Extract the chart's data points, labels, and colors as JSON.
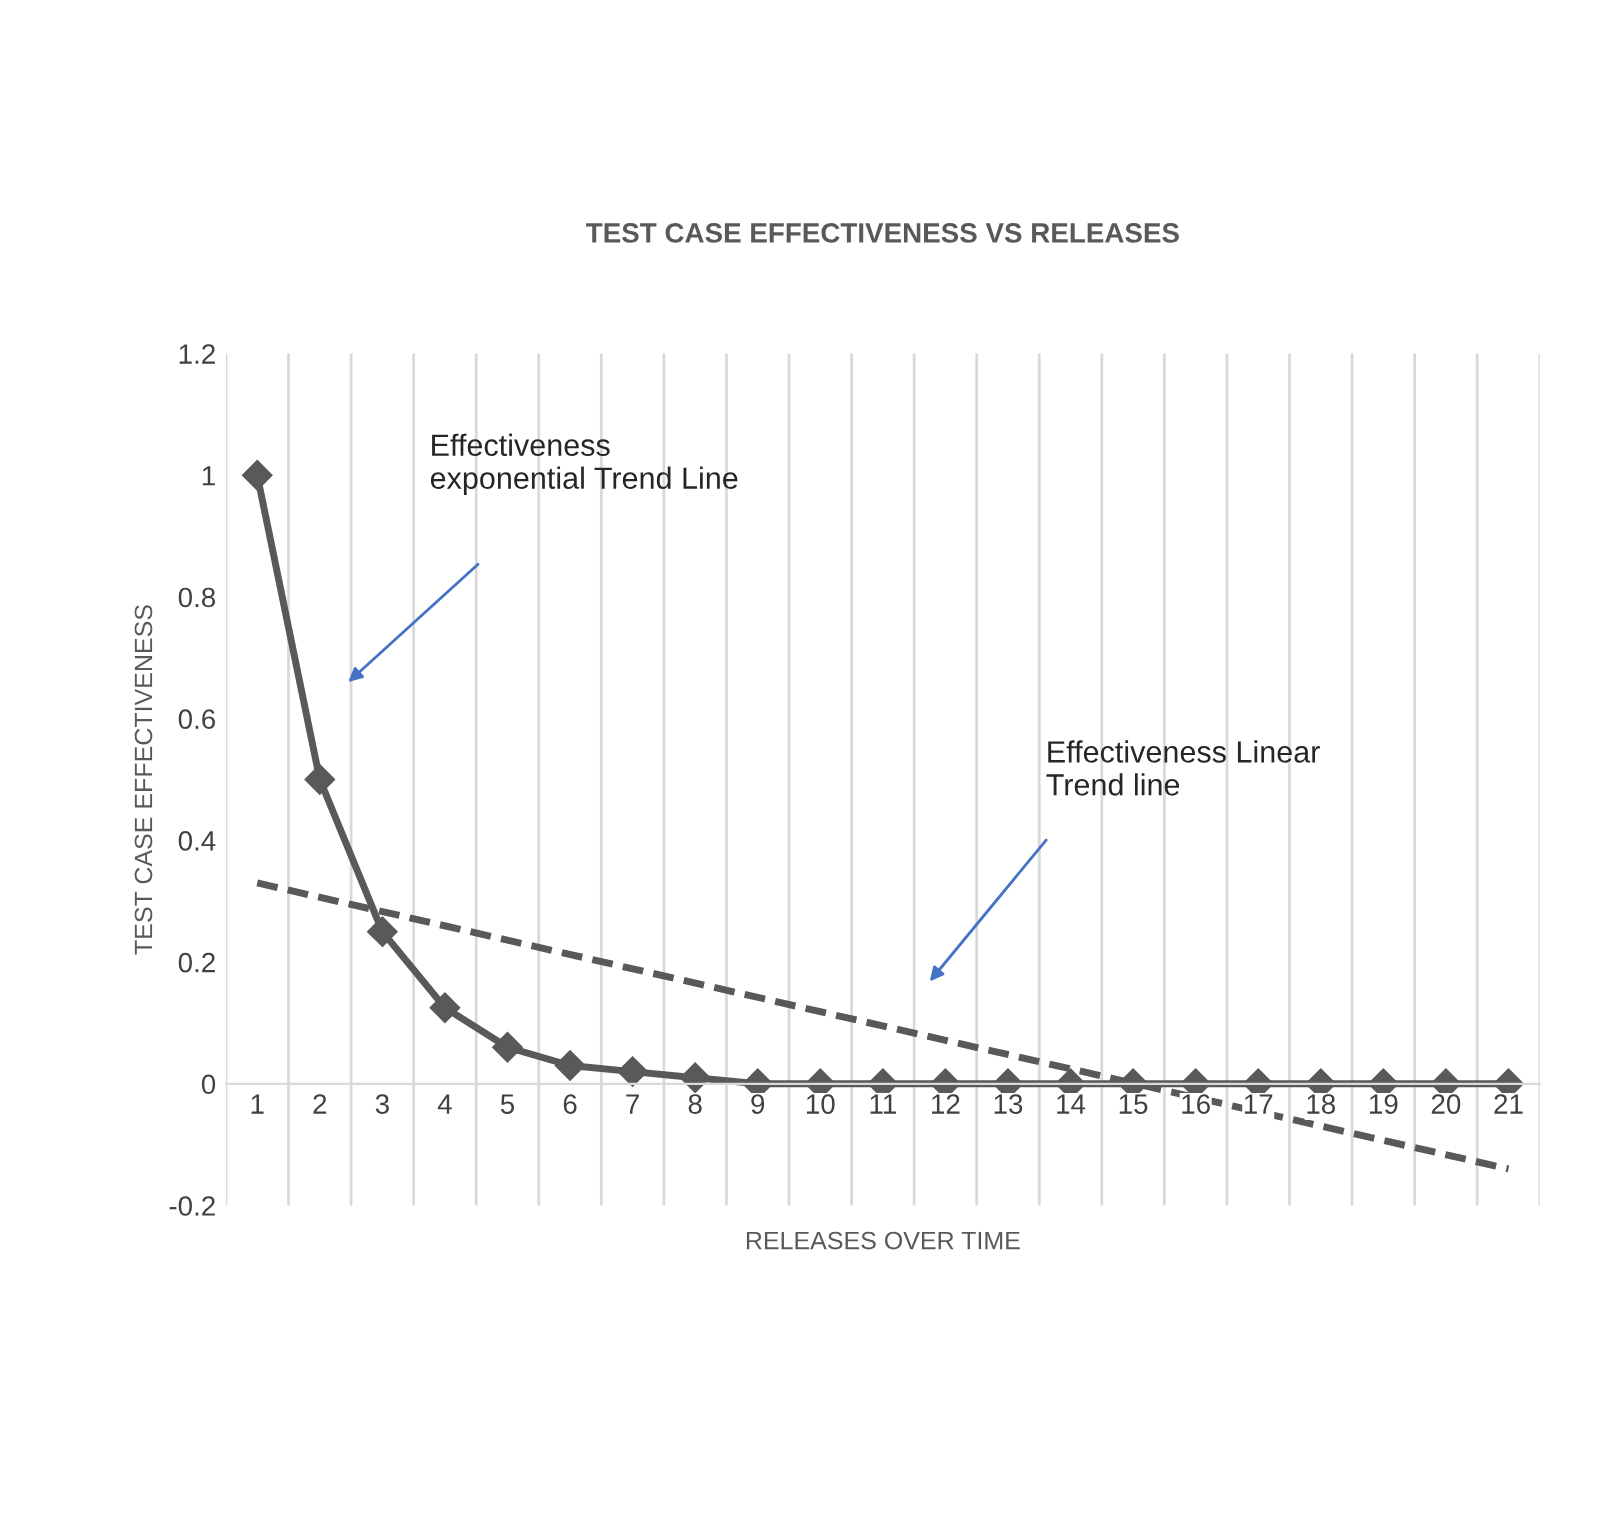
{
  "chart_data": {
    "type": "line",
    "title": "TEST CASE EFFECTIVENESS VS RELEASES",
    "xlabel": "RELEASES OVER TIME",
    "ylabel": "TEST CASE EFFECTIVENESS",
    "categories": [
      "1",
      "2",
      "3",
      "4",
      "5",
      "6",
      "7",
      "8",
      "9",
      "10",
      "11",
      "12",
      "13",
      "14",
      "15",
      "16",
      "17",
      "18",
      "19",
      "20",
      "21"
    ],
    "series": [
      {
        "color": "#595959",
        "marker": "diamond",
        "line_style": "solid",
        "values": [
          1,
          0.5,
          0.25,
          0.125,
          0.06,
          0.03,
          0.02,
          0.01,
          0,
          0,
          0,
          0,
          0,
          0,
          0,
          0,
          0,
          0,
          0,
          0,
          0
        ]
      },
      {
        "color": "#595959",
        "marker": "none",
        "line_style": "dashed",
        "x": [
          "1",
          "21"
        ],
        "values": [
          0.33,
          -0.14
        ]
      }
    ],
    "ylim": [
      -0.2,
      1.2
    ],
    "yticks": [
      -0.2,
      0,
      0.2,
      0.4,
      0.6,
      0.8,
      1,
      1.2
    ],
    "grid": "x",
    "legend": false,
    "annotations": [
      "Effectiveness\nexponential Trend Line",
      "Effectiveness Linear\nTrend line"
    ]
  }
}
